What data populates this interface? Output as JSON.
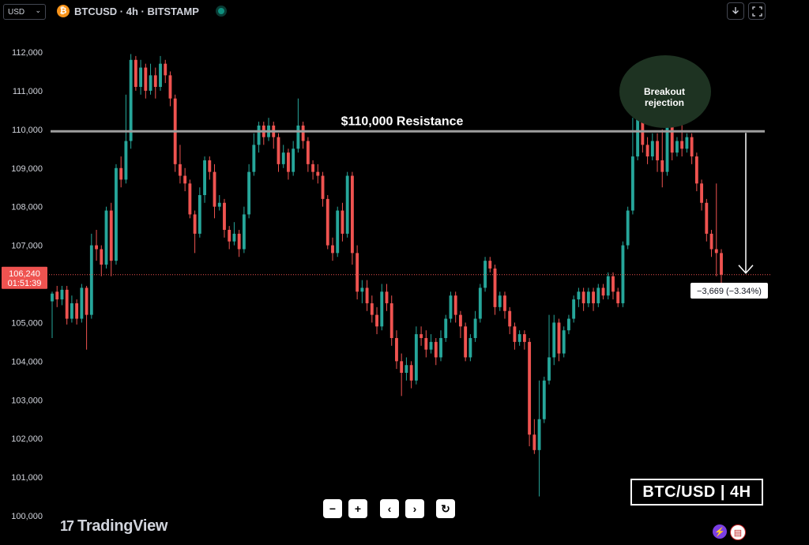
{
  "topbar": {
    "currency": "USD",
    "symbol": "BTCUSD · 4h · BITSTAMP",
    "btc_icon": "₿"
  },
  "chart_data": {
    "type": "candlestick",
    "ylim": [
      100000,
      112500
    ],
    "yticks": [
      "112,000",
      "111,000",
      "110,000",
      "109,000",
      "108,000",
      "107,000",
      "106,000",
      "105,000",
      "104,000",
      "103,000",
      "102,000",
      "101,000",
      "100,000"
    ],
    "ytick_values": [
      112000,
      111000,
      110000,
      109000,
      108000,
      107000,
      106000,
      105000,
      104000,
      103000,
      102000,
      101000,
      100000
    ],
    "resistance": {
      "value": 109950,
      "label": "$110,000 Resistance"
    },
    "annotation": {
      "text_line1": "Breakout",
      "text_line2": "rejection"
    },
    "current_price": {
      "price": "106,240",
      "countdown": "01:51:39",
      "value": 106240
    },
    "change_label": "−3,669 (−3.34%)",
    "colors": {
      "up": "#26a69a",
      "down": "#ef5350",
      "resistance": "#9e9e9e",
      "annotation": "#1e3322"
    },
    "candles": [
      [
        105.55,
        105.75,
        104.6,
        105.8
      ],
      [
        105.8,
        105.6,
        105.4,
        105.95
      ],
      [
        105.6,
        105.85,
        105.45,
        105.95
      ],
      [
        105.85,
        105.1,
        104.95,
        105.95
      ],
      [
        105.1,
        105.5,
        105.0,
        105.7
      ],
      [
        105.5,
        105.1,
        104.95,
        105.6
      ],
      [
        105.1,
        105.9,
        105.0,
        106.0
      ],
      [
        105.9,
        105.2,
        104.3,
        105.95
      ],
      [
        105.2,
        107.0,
        105.1,
        107.3
      ],
      [
        107.0,
        106.9,
        106.6,
        107.4
      ],
      [
        106.9,
        106.5,
        106.2,
        107.0
      ],
      [
        106.5,
        107.9,
        106.4,
        108.0
      ],
      [
        107.9,
        106.6,
        106.2,
        108.1
      ],
      [
        106.6,
        109.0,
        106.5,
        109.1
      ],
      [
        109.0,
        108.7,
        108.5,
        109.3
      ],
      [
        108.7,
        109.7,
        108.6,
        110.9
      ],
      [
        109.7,
        111.8,
        109.5,
        111.95
      ],
      [
        111.8,
        111.1,
        111.0,
        111.9
      ],
      [
        111.1,
        111.6,
        110.9,
        111.8
      ],
      [
        111.6,
        111.0,
        110.8,
        111.7
      ],
      [
        111.0,
        111.4,
        110.9,
        111.7
      ],
      [
        111.4,
        111.1,
        110.8,
        111.6
      ],
      [
        111.1,
        111.7,
        111.0,
        111.9
      ],
      [
        111.7,
        111.4,
        111.2,
        111.8
      ],
      [
        111.4,
        110.8,
        110.6,
        111.5
      ],
      [
        110.8,
        109.1,
        108.9,
        110.9
      ],
      [
        109.1,
        108.8,
        108.6,
        109.6
      ],
      [
        108.8,
        108.6,
        108.4,
        109.0
      ],
      [
        108.6,
        107.8,
        107.7,
        108.7
      ],
      [
        107.8,
        107.3,
        106.8,
        107.9
      ],
      [
        107.3,
        108.3,
        107.2,
        108.5
      ],
      [
        108.3,
        109.2,
        108.1,
        109.3
      ],
      [
        109.2,
        108.9,
        108.7,
        109.3
      ],
      [
        108.9,
        108.0,
        107.7,
        109.1
      ],
      [
        108.0,
        108.1,
        107.9,
        108.3
      ],
      [
        108.1,
        107.4,
        107.2,
        108.2
      ],
      [
        107.4,
        107.1,
        106.9,
        107.5
      ],
      [
        107.1,
        107.3,
        107.0,
        107.6
      ],
      [
        107.3,
        106.9,
        106.7,
        107.4
      ],
      [
        106.9,
        107.8,
        106.8,
        108.0
      ],
      [
        107.8,
        108.9,
        107.7,
        109.1
      ],
      [
        108.9,
        109.6,
        108.8,
        109.9
      ],
      [
        109.6,
        110.1,
        109.4,
        110.2
      ],
      [
        110.1,
        109.8,
        109.6,
        110.2
      ],
      [
        109.8,
        110.1,
        109.7,
        110.3
      ],
      [
        110.1,
        109.8,
        109.5,
        110.2
      ],
      [
        109.8,
        109.1,
        108.9,
        109.9
      ],
      [
        109.1,
        109.4,
        109.0,
        109.6
      ],
      [
        109.4,
        108.9,
        108.7,
        109.5
      ],
      [
        108.9,
        109.5,
        108.8,
        109.7
      ],
      [
        109.5,
        110.1,
        109.4,
        110.8
      ],
      [
        110.1,
        109.7,
        109.5,
        110.2
      ],
      [
        109.7,
        109.1,
        108.9,
        109.8
      ],
      [
        109.1,
        108.9,
        108.7,
        109.2
      ],
      [
        108.9,
        108.8,
        108.6,
        109.1
      ],
      [
        108.8,
        108.2,
        108.0,
        108.9
      ],
      [
        108.2,
        107.0,
        106.9,
        108.3
      ],
      [
        107.0,
        106.8,
        106.6,
        107.2
      ],
      [
        106.8,
        107.9,
        106.7,
        108.0
      ],
      [
        107.9,
        107.3,
        107.1,
        108.1
      ],
      [
        107.3,
        108.8,
        107.2,
        108.9
      ],
      [
        108.8,
        106.8,
        106.5,
        108.9
      ],
      [
        106.8,
        105.8,
        105.6,
        107.0
      ],
      [
        105.8,
        105.9,
        105.5,
        106.1
      ],
      [
        105.9,
        105.5,
        105.3,
        106.1
      ],
      [
        105.5,
        105.2,
        105.0,
        105.7
      ],
      [
        105.2,
        104.9,
        104.7,
        105.4
      ],
      [
        104.9,
        105.8,
        104.8,
        106.0
      ],
      [
        105.8,
        105.5,
        105.3,
        106.0
      ],
      [
        105.5,
        104.6,
        104.4,
        105.7
      ],
      [
        104.6,
        104.0,
        103.8,
        104.8
      ],
      [
        104.0,
        103.7,
        103.1,
        104.2
      ],
      [
        103.7,
        103.9,
        103.5,
        104.1
      ],
      [
        103.9,
        103.5,
        103.3,
        104.0
      ],
      [
        103.5,
        104.7,
        103.4,
        104.9
      ],
      [
        104.7,
        104.6,
        104.4,
        104.9
      ],
      [
        104.6,
        104.3,
        104.1,
        104.8
      ],
      [
        104.3,
        104.5,
        104.2,
        104.7
      ],
      [
        104.5,
        104.1,
        103.9,
        104.6
      ],
      [
        104.1,
        104.6,
        104.0,
        104.8
      ],
      [
        104.6,
        105.1,
        104.5,
        105.2
      ],
      [
        105.1,
        105.7,
        105.0,
        105.8
      ],
      [
        105.7,
        105.2,
        105.0,
        105.8
      ],
      [
        105.2,
        104.9,
        104.6,
        105.3
      ],
      [
        104.9,
        104.1,
        104.0,
        105.0
      ],
      [
        104.1,
        104.6,
        104.0,
        104.7
      ],
      [
        104.6,
        105.1,
        104.5,
        105.3
      ],
      [
        105.1,
        105.9,
        105.0,
        106.0
      ],
      [
        105.9,
        106.6,
        105.8,
        106.7
      ],
      [
        106.6,
        106.4,
        106.3,
        106.7
      ],
      [
        106.4,
        105.4,
        105.2,
        106.5
      ],
      [
        105.4,
        105.7,
        105.3,
        105.8
      ],
      [
        105.7,
        105.3,
        105.1,
        105.8
      ],
      [
        105.3,
        104.9,
        104.7,
        105.4
      ],
      [
        104.9,
        104.5,
        104.3,
        105.0
      ],
      [
        104.5,
        104.7,
        104.4,
        104.8
      ],
      [
        104.7,
        104.5,
        104.3,
        104.8
      ],
      [
        104.5,
        102.1,
        101.8,
        104.6
      ],
      [
        102.1,
        101.7,
        101.6,
        102.5
      ],
      [
        101.7,
        102.5,
        100.5,
        103.5
      ],
      [
        102.5,
        103.5,
        102.4,
        103.6
      ],
      [
        103.5,
        104.1,
        103.4,
        105.2
      ],
      [
        104.1,
        105.0,
        103.9,
        105.2
      ],
      [
        105.0,
        104.2,
        104.0,
        105.1
      ],
      [
        104.2,
        104.8,
        104.1,
        104.9
      ],
      [
        104.8,
        105.1,
        104.7,
        105.2
      ],
      [
        105.1,
        105.6,
        105.0,
        105.7
      ],
      [
        105.6,
        105.8,
        105.4,
        105.9
      ],
      [
        105.8,
        105.5,
        105.3,
        105.9
      ],
      [
        105.5,
        105.8,
        105.4,
        105.9
      ],
      [
        105.8,
        105.5,
        105.3,
        105.9
      ],
      [
        105.5,
        105.9,
        105.4,
        106.0
      ],
      [
        105.9,
        105.7,
        105.6,
        106.0
      ],
      [
        105.7,
        106.2,
        105.6,
        106.3
      ],
      [
        106.2,
        105.8,
        105.6,
        106.3
      ],
      [
        105.8,
        105.5,
        105.4,
        105.9
      ],
      [
        105.5,
        107.0,
        105.4,
        107.1
      ],
      [
        107.0,
        107.9,
        106.9,
        108.0
      ],
      [
        107.9,
        109.3,
        107.8,
        110.3
      ],
      [
        109.3,
        110.3,
        109.2,
        110.4
      ],
      [
        110.3,
        109.6,
        109.4,
        110.4
      ],
      [
        109.6,
        109.3,
        109.1,
        109.8
      ],
      [
        109.3,
        109.7,
        109.2,
        109.9
      ],
      [
        109.7,
        109.2,
        108.9,
        109.9
      ],
      [
        109.2,
        108.9,
        108.5,
        110.0
      ],
      [
        108.9,
        110.3,
        108.8,
        110.5
      ],
      [
        110.3,
        109.4,
        109.2,
        110.4
      ],
      [
        109.4,
        109.7,
        109.3,
        109.8
      ],
      [
        109.7,
        109.5,
        109.3,
        110.4
      ],
      [
        109.5,
        109.8,
        109.4,
        109.9
      ],
      [
        109.8,
        109.3,
        109.1,
        109.9
      ],
      [
        109.3,
        108.6,
        108.4,
        109.4
      ],
      [
        108.6,
        108.1,
        107.9,
        108.7
      ],
      [
        108.1,
        107.3,
        107.1,
        108.2
      ],
      [
        107.3,
        106.9,
        106.7,
        107.4
      ],
      [
        106.9,
        106.8,
        106.2,
        108.6
      ],
      [
        106.8,
        106.24,
        105.9,
        106.9
      ]
    ]
  },
  "controls": {
    "zoom_out": "−",
    "zoom_in": "+",
    "scroll_left": "‹",
    "scroll_right": "›",
    "reset": "↻"
  },
  "footer": {
    "brand": "TradingView",
    "brand_mark": "17",
    "pair_label": "BTC/USD | 4H"
  }
}
